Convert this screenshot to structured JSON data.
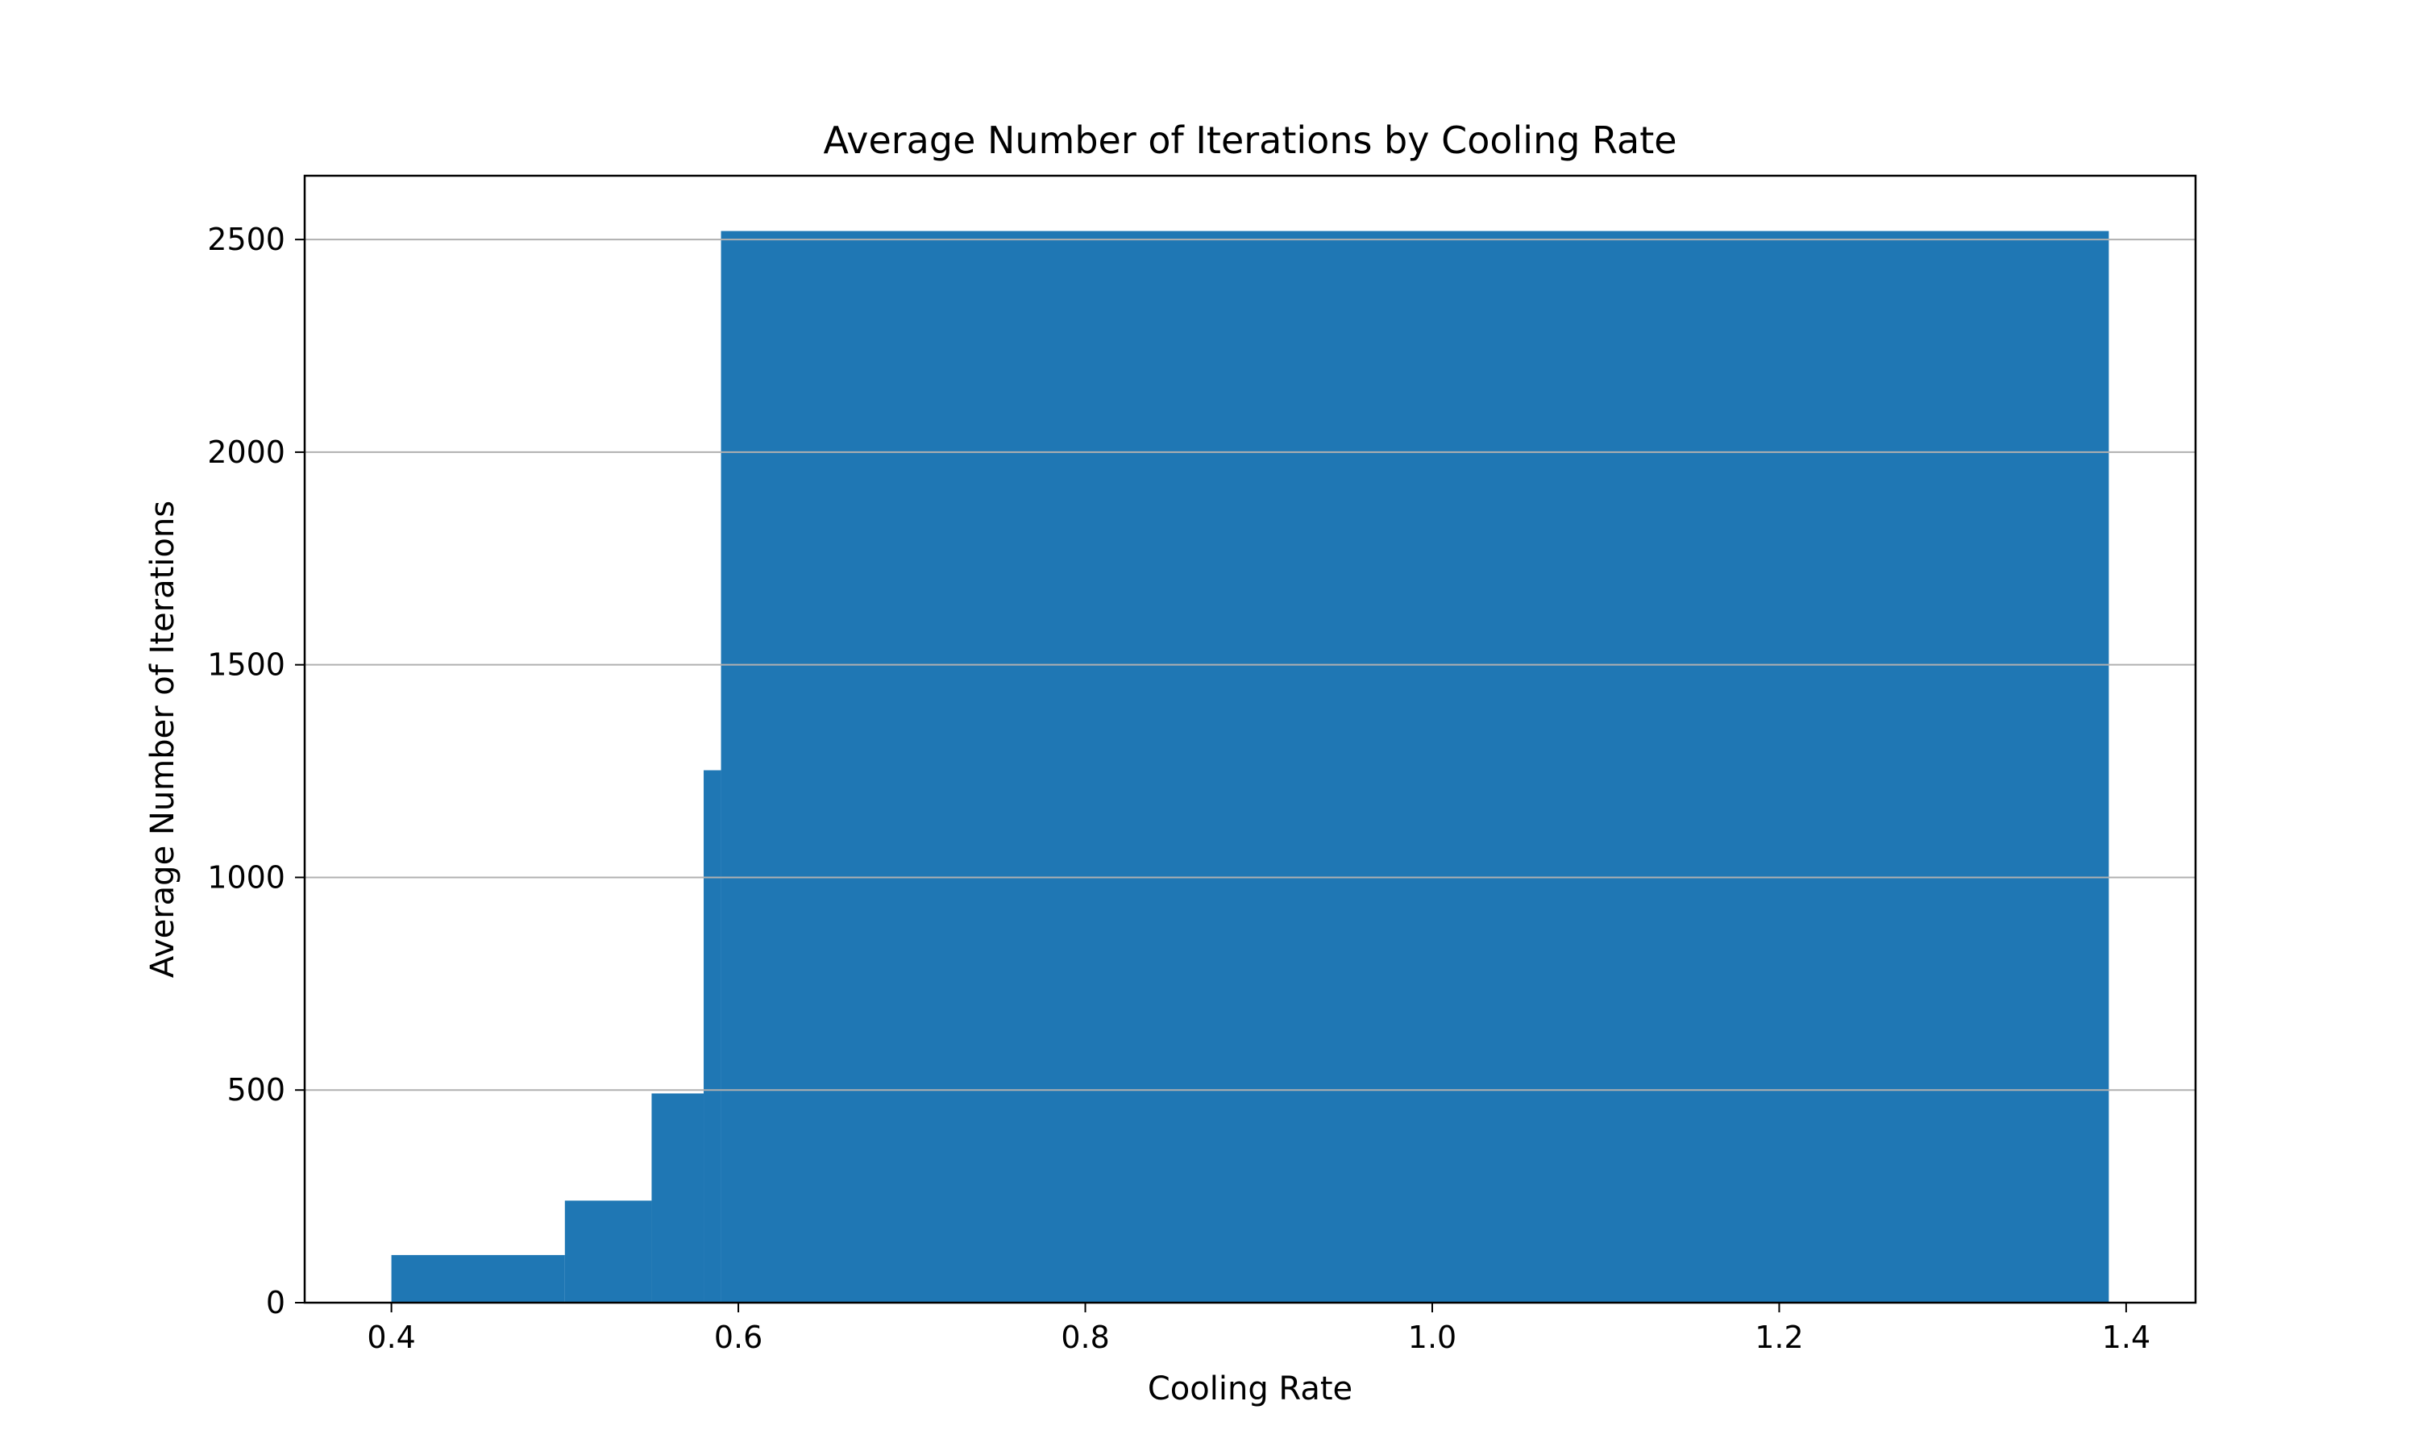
{
  "chart_data": {
    "type": "bar",
    "title": "Average Number of Iterations by Cooling Rate",
    "xlabel": "Cooling Rate",
    "ylabel": "Average Number of Iterations",
    "xlim": [
      0.35,
      1.44
    ],
    "ylim": [
      0,
      2650
    ],
    "grid": "y",
    "color": "#1f77b4",
    "xticks": [
      0.4,
      0.6,
      0.8,
      1.0,
      1.2,
      1.4
    ],
    "xtick_labels": [
      "0.4",
      "0.6",
      "0.8",
      "1.0",
      "1.2",
      "1.4"
    ],
    "yticks": [
      0,
      500,
      1000,
      1500,
      2000,
      2500
    ],
    "ytick_labels": [
      "0",
      "500",
      "1000",
      "1500",
      "2000",
      "2500"
    ],
    "bars": [
      {
        "x_start": 0.4,
        "x_end": 0.5,
        "value": 112
      },
      {
        "x_start": 0.5,
        "x_end": 0.55,
        "value": 240
      },
      {
        "x_start": 0.55,
        "x_end": 0.58,
        "value": 492
      },
      {
        "x_start": 0.58,
        "x_end": 0.59,
        "value": 1252
      },
      {
        "x_start": 0.59,
        "x_end": 1.39,
        "value": 2520
      }
    ]
  }
}
